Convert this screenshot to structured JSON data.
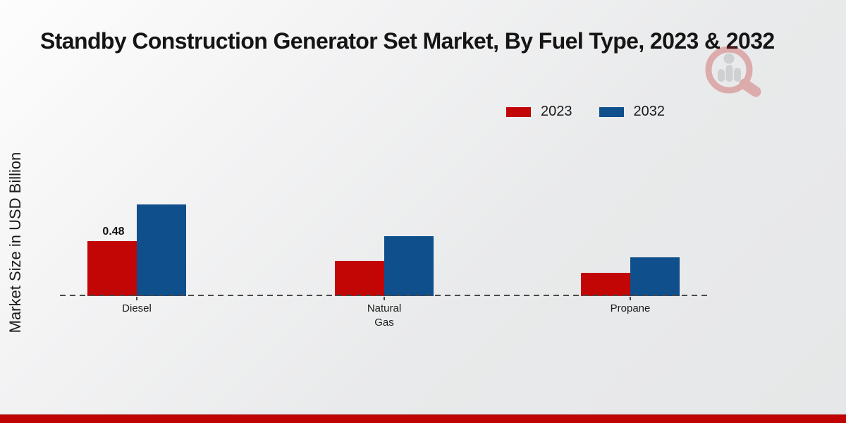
{
  "header": {
    "title": "Standby Construction Generator Set Market, By Fuel Type, 2023 & 2032"
  },
  "y_axis_label": "Market Size in USD Billion",
  "legend": {
    "items": [
      {
        "label": "2023",
        "color": "#c20606"
      },
      {
        "label": "2032",
        "color": "#0f4f8c"
      }
    ]
  },
  "chart_data": {
    "type": "bar",
    "title": "Standby Construction Generator Set Market, By Fuel Type, 2023 & 2032",
    "xlabel": "",
    "ylabel": "Market Size in USD Billion",
    "categories": [
      "Diesel",
      "Natural Gas",
      "Propane"
    ],
    "series": [
      {
        "name": "2023",
        "color": "#c20606",
        "values": [
          0.48,
          0.31,
          0.2
        ],
        "data_labels": [
          "0.48",
          "",
          ""
        ]
      },
      {
        "name": "2032",
        "color": "#0f4f8c",
        "values": [
          0.8,
          0.52,
          0.34
        ],
        "data_labels": [
          "",
          "",
          ""
        ]
      }
    ],
    "ylim": [
      0,
      1.0
    ],
    "grid": false,
    "legend_position": "top-right",
    "baseline_style": "dashed"
  },
  "colors": {
    "series_2023": "#c20606",
    "series_2032": "#0f4f8c",
    "dashed_line": "#4a4a4a",
    "bottom_bar": "#c00300",
    "title_text": "#151515"
  }
}
